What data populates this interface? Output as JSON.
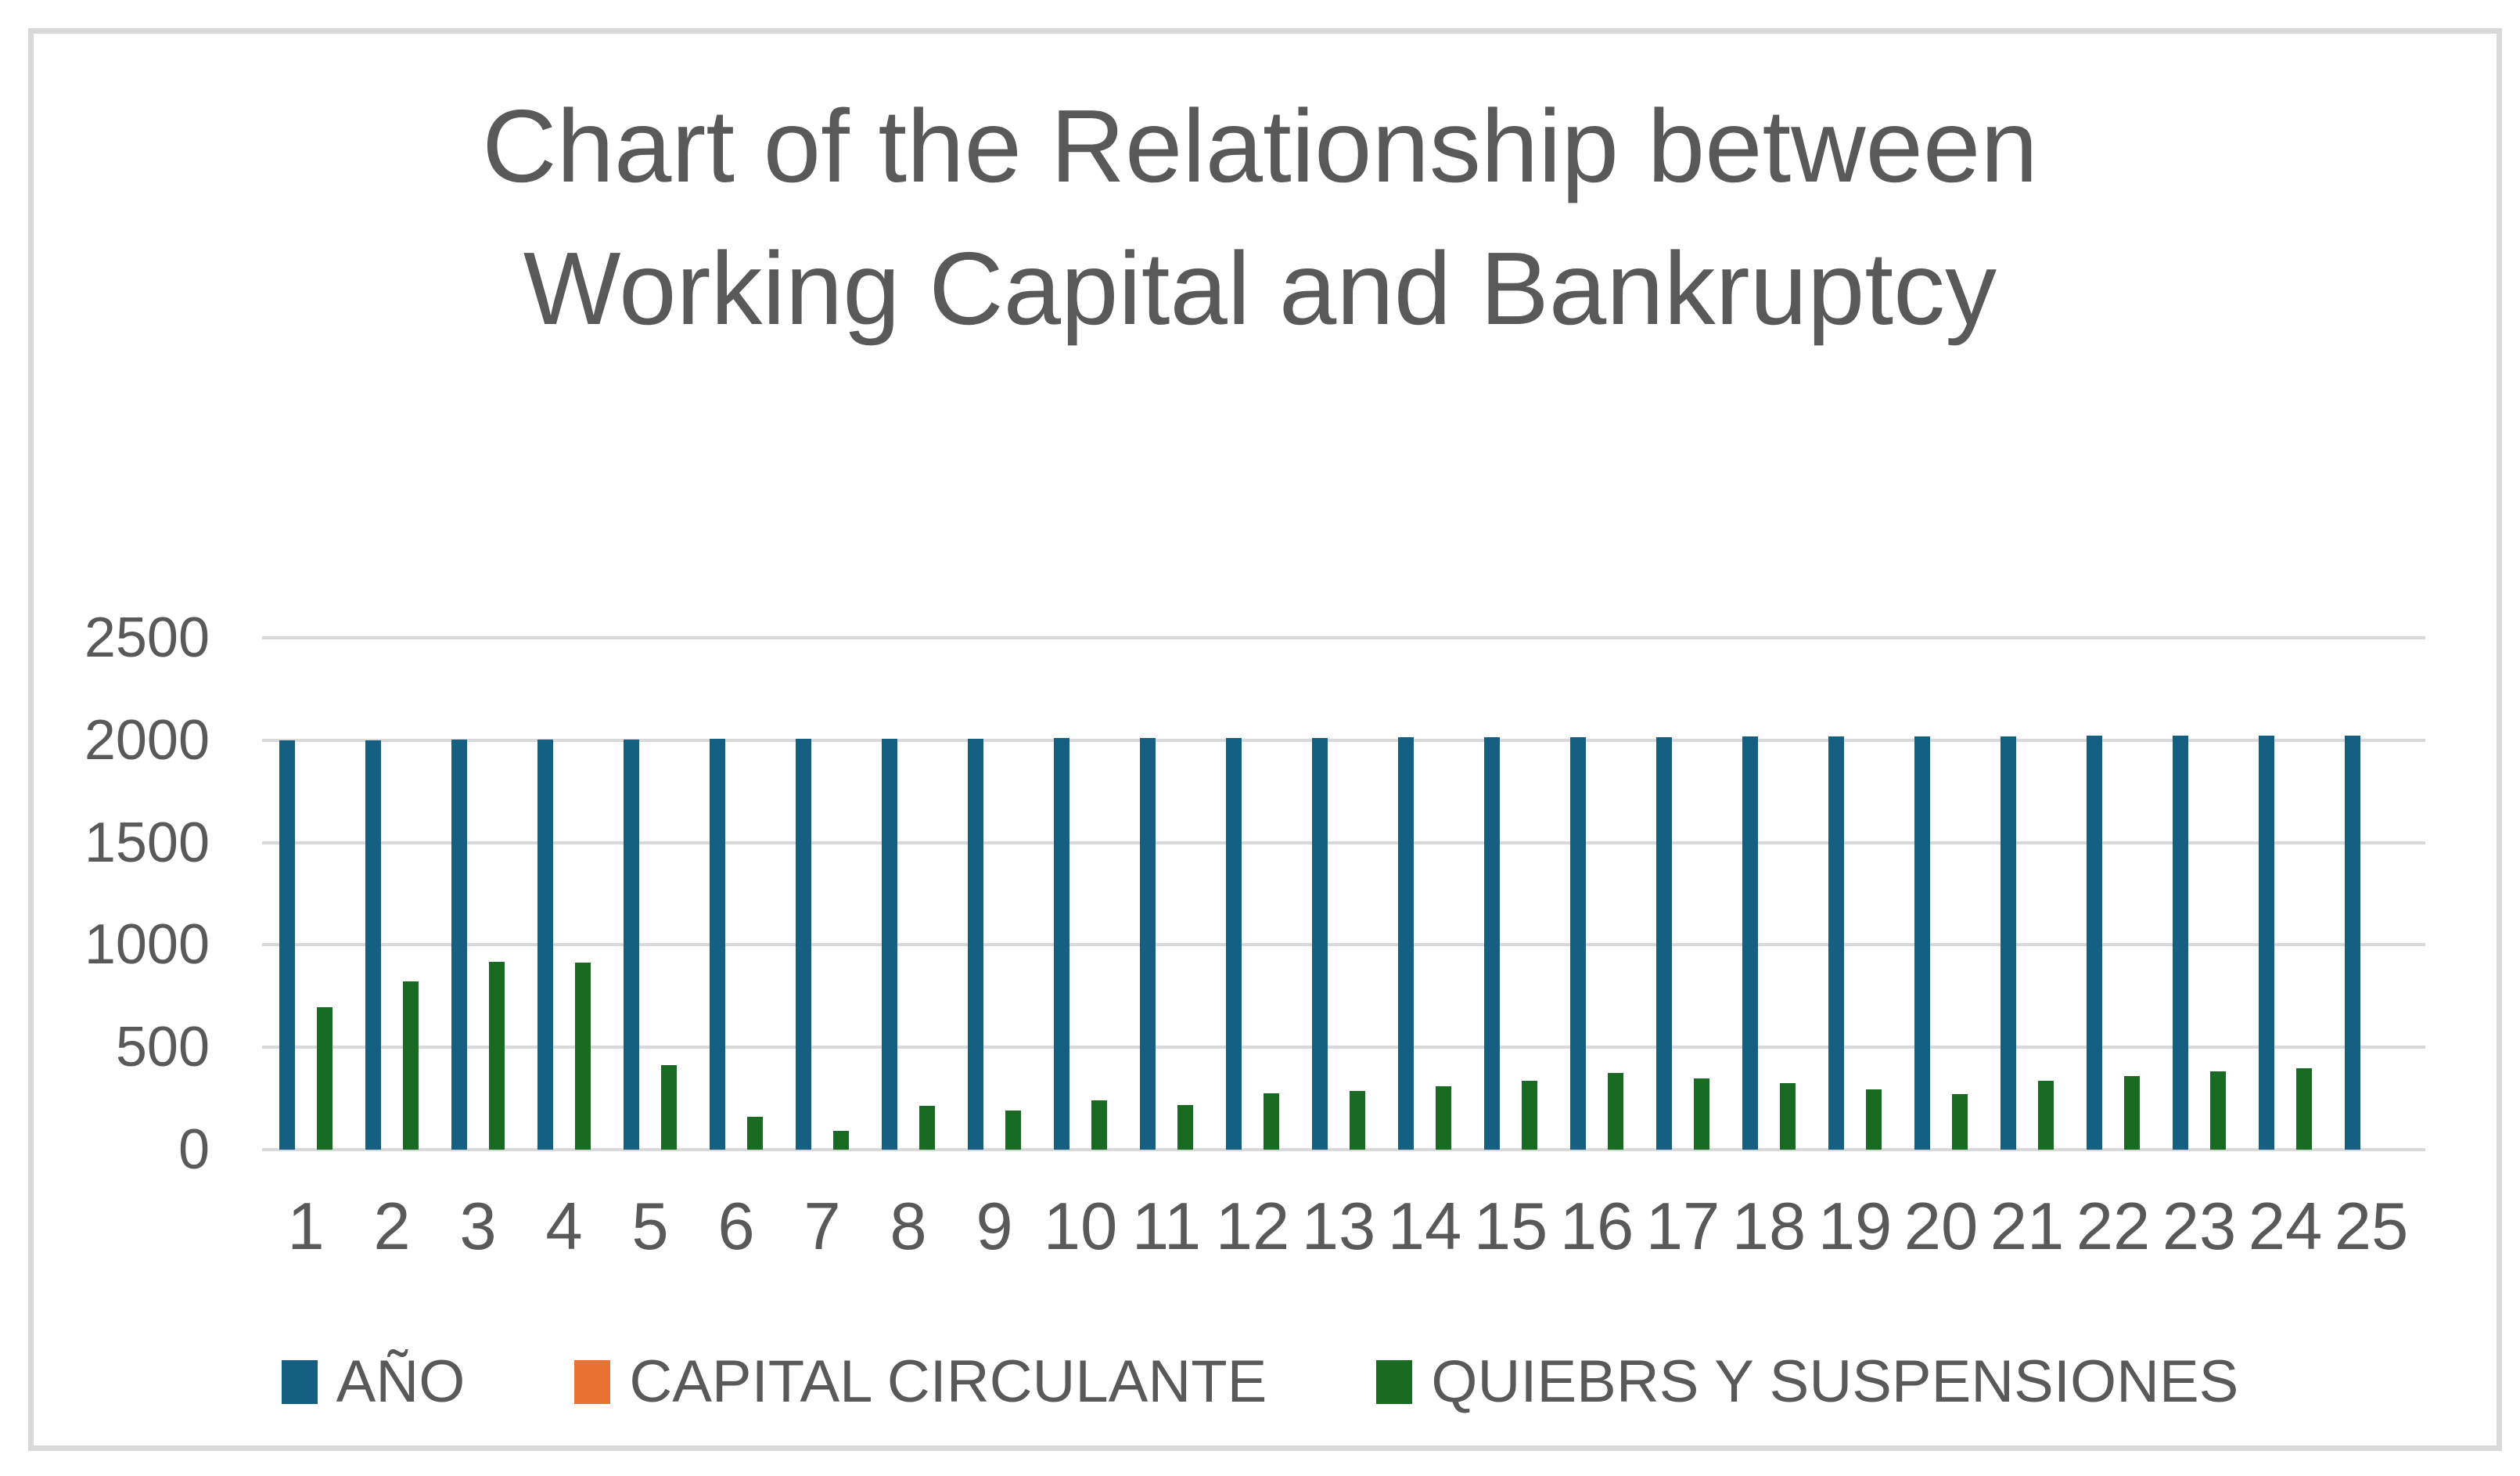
{
  "page": {
    "background_color": "#FFFFFF",
    "frame_border_color": "#D9D9D9",
    "text_color": "#595959",
    "gridline_color": "#D9D9D9"
  },
  "title": {
    "lines": [
      "Chart of the Relationship between",
      "Working Capital and Bankruptcy"
    ],
    "color": "#595959"
  },
  "chart_data": {
    "type": "bar",
    "title": "Chart of the Relationship between Working Capital and Bankruptcy",
    "categories": [
      "1",
      "2",
      "3",
      "4",
      "5",
      "6",
      "7",
      "8",
      "9",
      "10",
      "11",
      "12",
      "13",
      "14",
      "15",
      "16",
      "17",
      "18",
      "19",
      "20",
      "21",
      "22",
      "23",
      "24",
      "25"
    ],
    "series": [
      {
        "name": "AÑO",
        "color": "#156082",
        "values": [
          2000,
          2001,
          2002,
          2003,
          2004,
          2005,
          2006,
          2007,
          2008,
          2009,
          2010,
          2011,
          2012,
          2013,
          2014,
          2015,
          2016,
          2017,
          2018,
          2019,
          2020,
          2021,
          2022,
          2023,
          2024
        ]
      },
      {
        "name": "CAPITAL CIRCULANTE",
        "color": "#E97132",
        "values": [
          0,
          0,
          0,
          0,
          0,
          0,
          0,
          0,
          0,
          0,
          0,
          0,
          0,
          0,
          0,
          0,
          0,
          0,
          0,
          0,
          0,
          0,
          0,
          0,
          0
        ]
      },
      {
        "name": "QUIEBRS Y SUSPENSIONES",
        "color": "#196B24",
        "values": [
          695,
          820,
          918,
          914,
          413,
          160,
          92,
          214,
          191,
          239,
          218,
          274,
          286,
          310,
          337,
          374,
          349,
          324,
          294,
          273,
          337,
          358,
          384,
          399,
          0
        ]
      }
    ],
    "xlabel": "",
    "ylabel": "",
    "ylim": [
      0,
      2500
    ],
    "yticks": [
      0,
      500,
      1000,
      1500,
      2000,
      2500
    ],
    "grid": true,
    "legend_position": "bottom"
  },
  "legend": {
    "items": [
      {
        "label": "AÑO",
        "color": "#156082"
      },
      {
        "label": "CAPITAL CIRCULANTE",
        "color": "#E97132"
      },
      {
        "label": "QUIEBRS Y SUSPENSIONES",
        "color": "#196B24"
      }
    ]
  }
}
